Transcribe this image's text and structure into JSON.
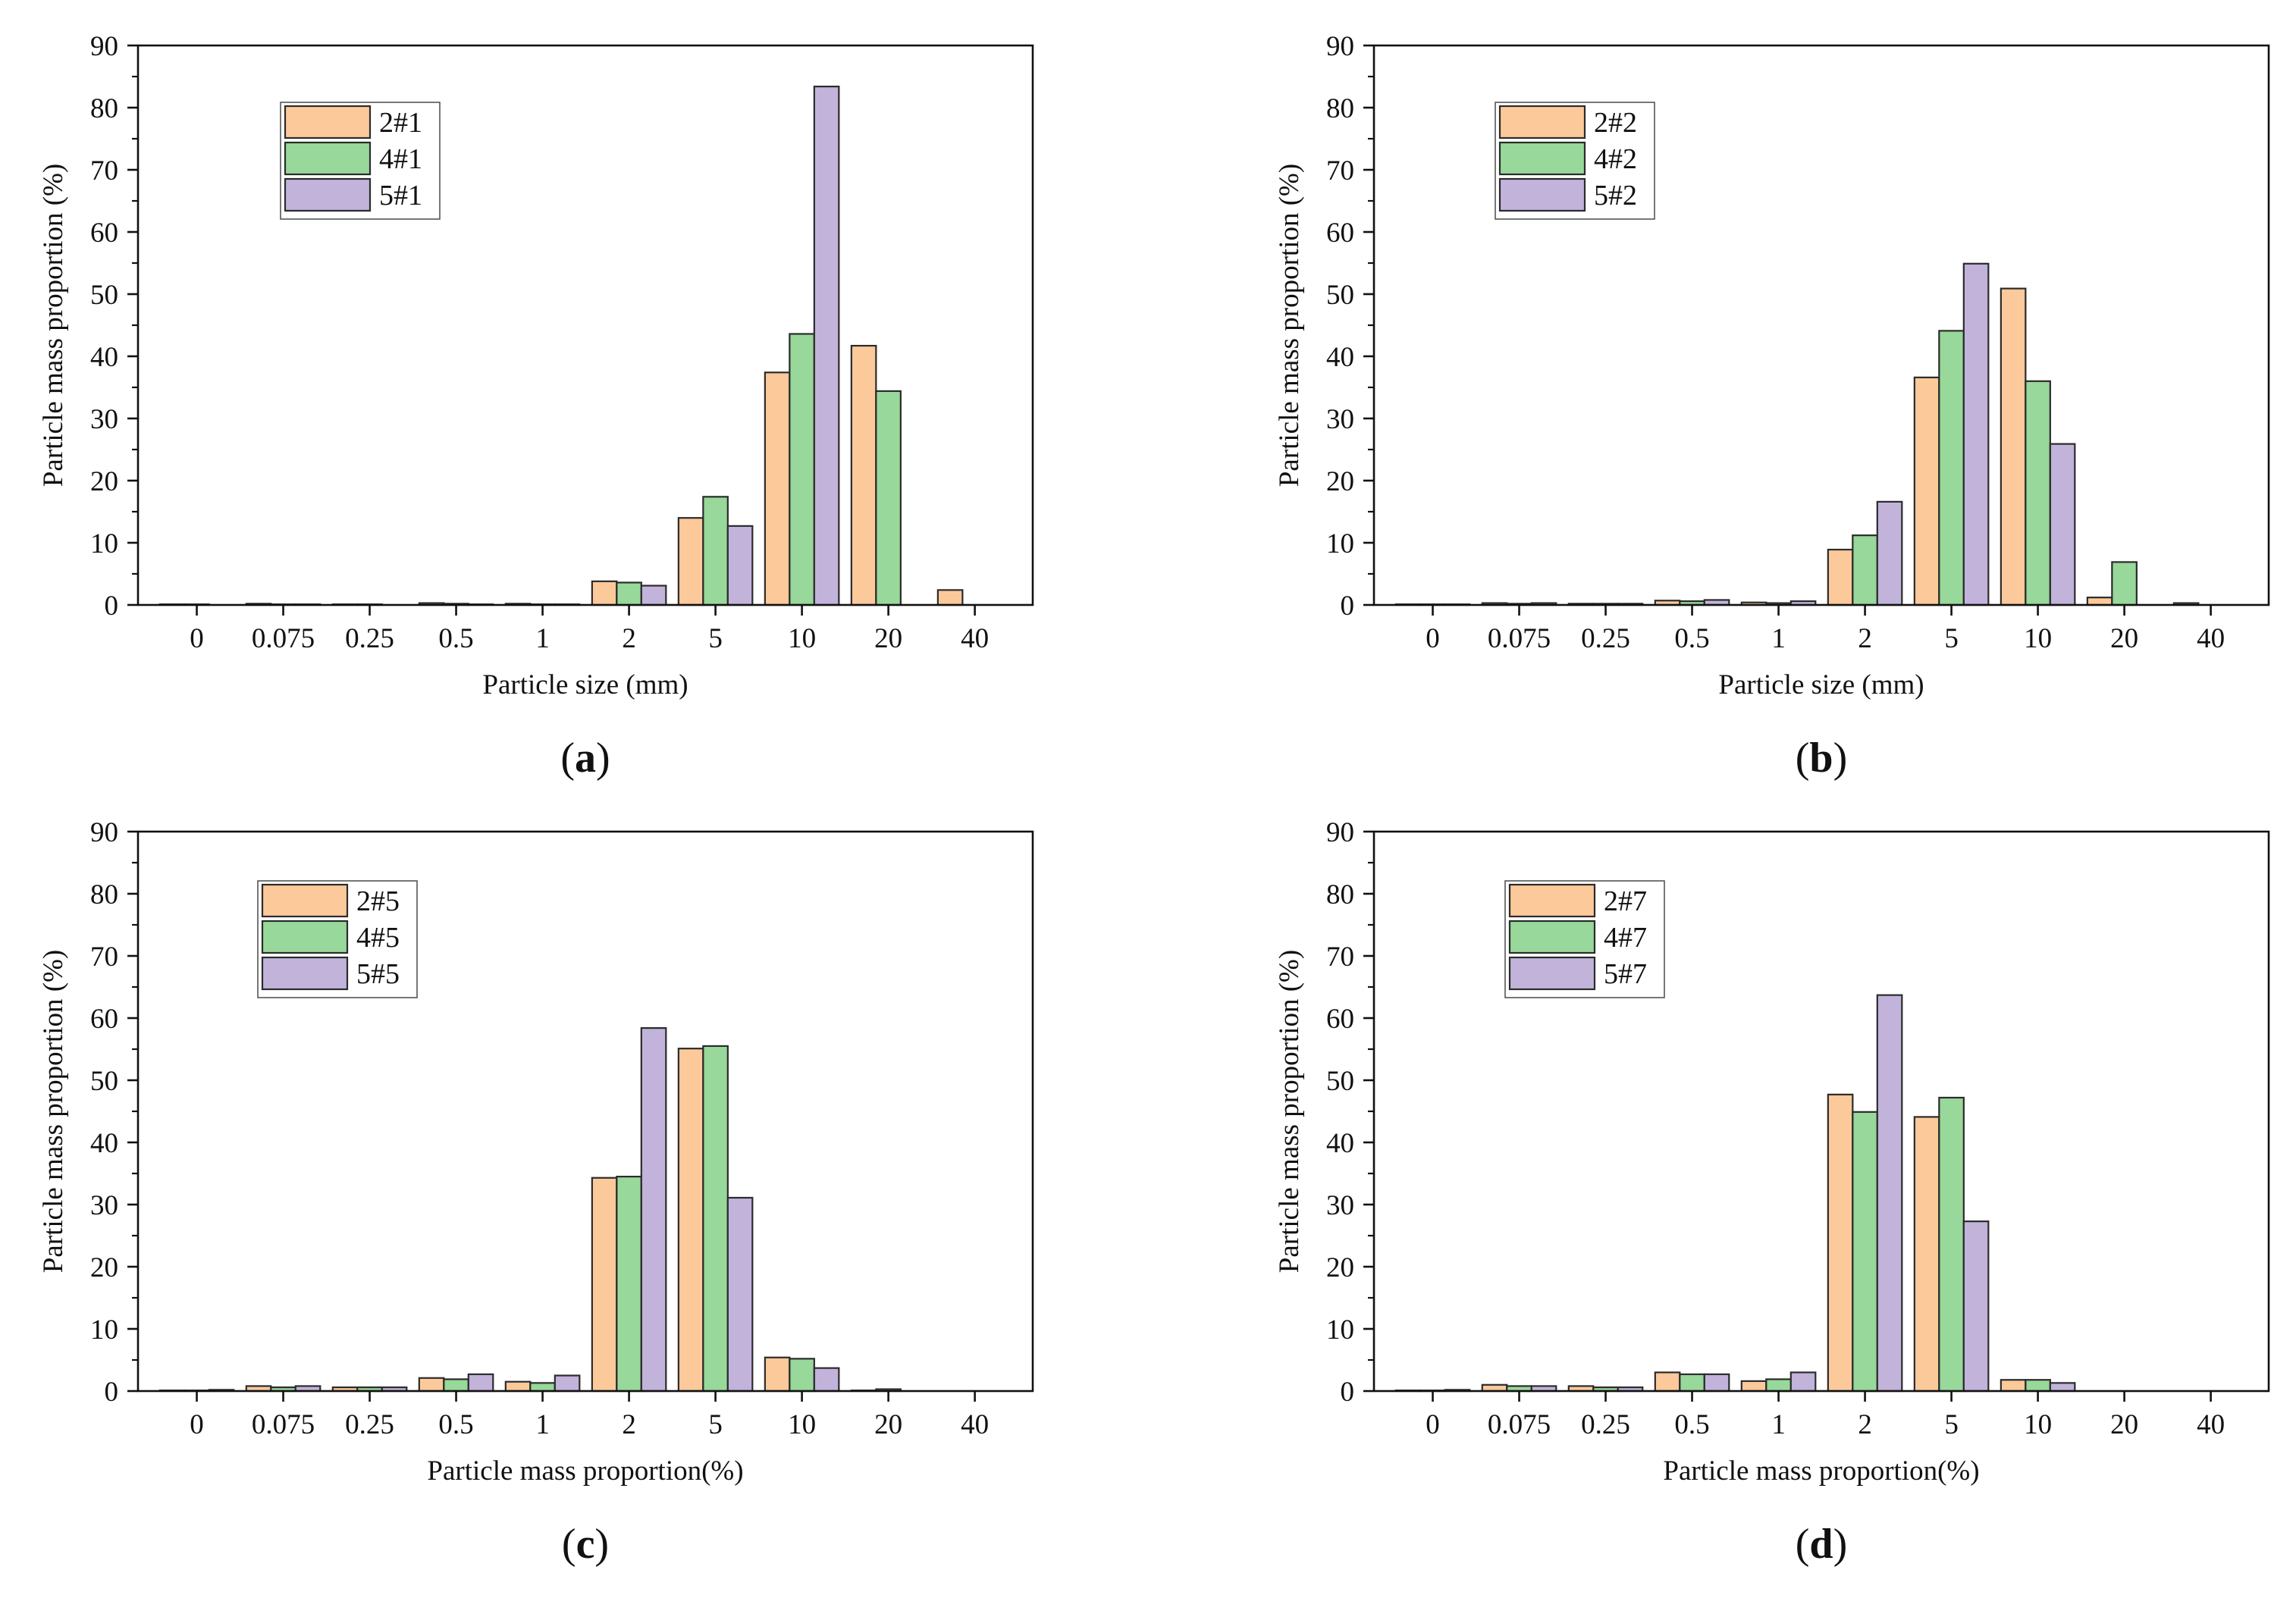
{
  "figure": {
    "colors": {
      "series": [
        "#fcc99a",
        "#98d89a",
        "#c2b3db"
      ],
      "edge": "#2b2b2b"
    }
  },
  "chart_data": [
    {
      "type": "bar",
      "panel_label": "a",
      "title": "",
      "xlabel": "Particle size (mm)",
      "ylabel": "Particle mass proportion (%)",
      "ylim": [
        0,
        90
      ],
      "yticks": [
        0,
        10,
        20,
        30,
        40,
        50,
        60,
        70,
        80,
        90
      ],
      "legend_position": "upper-left",
      "categories": [
        "0",
        "0.075",
        "0.25",
        "0.5",
        "1",
        "2",
        "5",
        "10",
        "20",
        "40"
      ],
      "series": [
        {
          "name": "2#1",
          "values": [
            0.1,
            0.2,
            0.1,
            0.3,
            0.2,
            3.8,
            14,
            37.4,
            41.7,
            2.4
          ]
        },
        {
          "name": "4#1",
          "values": [
            0.1,
            0.1,
            0.1,
            0.2,
            0.1,
            3.6,
            17.4,
            43.6,
            34.4,
            0
          ]
        },
        {
          "name": "5#1",
          "values": [
            0,
            0.1,
            0,
            0.1,
            0.1,
            3.1,
            12.7,
            83.4,
            0,
            0
          ]
        }
      ]
    },
    {
      "type": "bar",
      "panel_label": "b",
      "title": "",
      "xlabel": "Particle size (mm)",
      "ylabel": "Particle mass proportion (%)",
      "ylim": [
        0,
        90
      ],
      "yticks": [
        0,
        10,
        20,
        30,
        40,
        50,
        60,
        70,
        80,
        90
      ],
      "legend_position": "upper-left",
      "categories": [
        "0",
        "0.075",
        "0.25",
        "0.5",
        "1",
        "2",
        "5",
        "10",
        "20",
        "40"
      ],
      "series": [
        {
          "name": "2#2",
          "values": [
            0.1,
            0.3,
            0.2,
            0.7,
            0.4,
            8.9,
            36.6,
            50.9,
            1.2,
            0.3
          ]
        },
        {
          "name": "4#2",
          "values": [
            0.1,
            0.2,
            0.2,
            0.6,
            0.3,
            11.2,
            44.1,
            36,
            6.9,
            0
          ]
        },
        {
          "name": "5#2",
          "values": [
            0.1,
            0.3,
            0.2,
            0.8,
            0.6,
            16.6,
            54.9,
            25.9,
            0,
            0
          ]
        }
      ]
    },
    {
      "type": "bar",
      "panel_label": "c",
      "title": "",
      "xlabel": "Particle mass proportion(%)",
      "ylabel": "Particle mass proportion (%)",
      "ylim": [
        0,
        90
      ],
      "yticks": [
        0,
        10,
        20,
        30,
        40,
        50,
        60,
        70,
        80,
        90
      ],
      "legend_position": "upper-left",
      "categories": [
        "0",
        "0.075",
        "0.25",
        "0.5",
        "1",
        "2",
        "5",
        "10",
        "20",
        "40"
      ],
      "series": [
        {
          "name": "2#5",
          "values": [
            0.1,
            0.8,
            0.6,
            2.1,
            1.5,
            34.3,
            55.1,
            5.4,
            0.1,
            0
          ]
        },
        {
          "name": "4#5",
          "values": [
            0.1,
            0.6,
            0.6,
            1.9,
            1.3,
            34.5,
            55.5,
            5.2,
            0.3,
            0
          ]
        },
        {
          "name": "5#5",
          "values": [
            0.2,
            0.8,
            0.6,
            2.7,
            2.5,
            58.4,
            31.1,
            3.7,
            0,
            0
          ]
        }
      ]
    },
    {
      "type": "bar",
      "panel_label": "d",
      "title": "",
      "xlabel": "Particle mass proportion(%)",
      "ylabel": "Particle mass proportion (%)",
      "ylim": [
        0,
        90
      ],
      "yticks": [
        0,
        10,
        20,
        30,
        40,
        50,
        60,
        70,
        80,
        90
      ],
      "legend_position": "upper-left",
      "categories": [
        "0",
        "0.075",
        "0.25",
        "0.5",
        "1",
        "2",
        "5",
        "10",
        "20",
        "40"
      ],
      "series": [
        {
          "name": "2#7",
          "values": [
            0.1,
            1,
            0.8,
            3,
            1.6,
            47.7,
            44.1,
            1.8,
            0,
            0
          ]
        },
        {
          "name": "4#7",
          "values": [
            0.1,
            0.8,
            0.6,
            2.7,
            1.9,
            44.9,
            47.2,
            1.8,
            0,
            0
          ]
        },
        {
          "name": "5#7",
          "values": [
            0.2,
            0.8,
            0.6,
            2.7,
            3,
            63.7,
            27.3,
            1.3,
            0,
            0
          ]
        }
      ]
    }
  ]
}
